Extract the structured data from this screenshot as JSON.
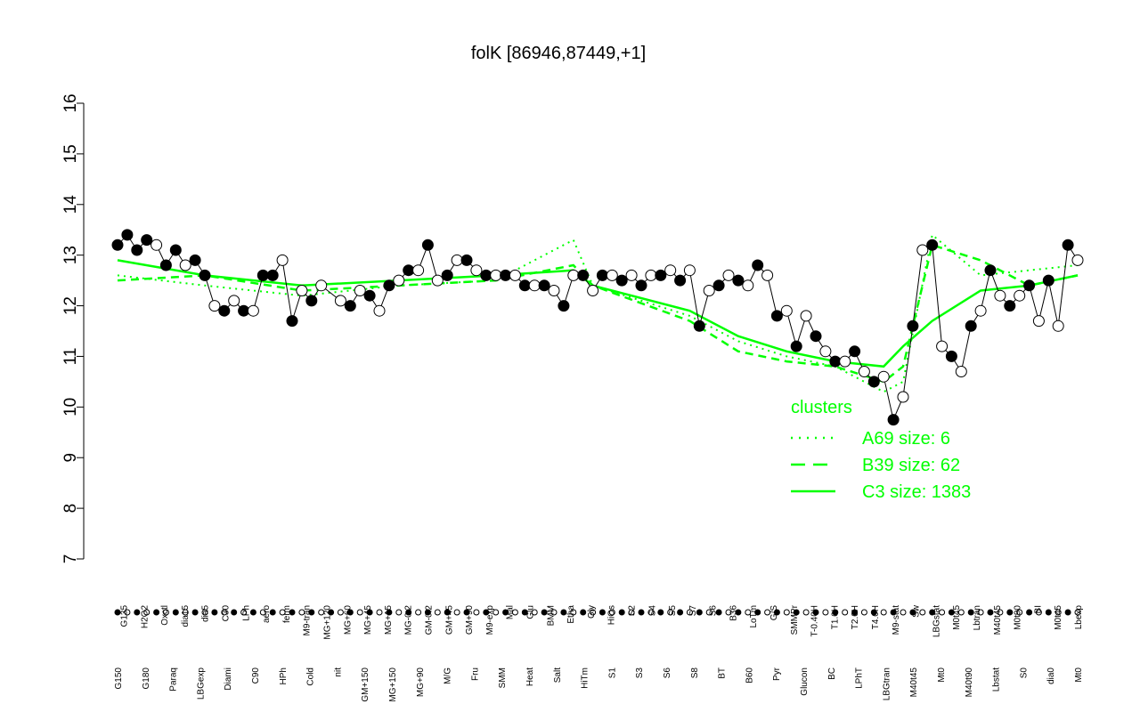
{
  "chart_data": {
    "type": "line",
    "title": "folK [86946,87449,+1]",
    "xlabel": "",
    "ylabel": "",
    "ylim": [
      7,
      16
    ],
    "yticks": [
      7,
      8,
      9,
      10,
      11,
      12,
      13,
      14,
      15,
      16
    ],
    "grid": false,
    "legend_position": "right",
    "legend_title": "clusters",
    "legend": [
      {
        "label": "A69 size: 6",
        "style": "dotted",
        "color": "#00ff00"
      },
      {
        "label": "B39 size: 62",
        "style": "dashed",
        "color": "#00ff00"
      },
      {
        "label": "C3 size: 1383",
        "style": "solid",
        "color": "#00ff00"
      }
    ],
    "x_tick_labels_top": [
      "G135",
      "H2O2",
      "Oxctl",
      "dia15",
      "dia5",
      "C30",
      "LPh",
      "aero",
      "ferm",
      "M9-tran",
      "MG+120",
      "MG+60",
      "MG+45",
      "MG+15",
      "MG-0.2",
      "GM-0.2",
      "GM+45",
      "GM+90",
      "M9-exp",
      "Mal",
      "Glu",
      "BMM",
      "Etha",
      "Gly",
      "HiOs",
      "S2",
      "S4",
      "S5",
      "S7",
      "S6",
      "B36",
      "LoTm",
      "G/S",
      "SMMPr",
      "T-0.40H",
      "T1.0H",
      "T2.0H",
      "T4.0H",
      "M9-stat",
      "Sw",
      "LBGstat",
      "M0t45",
      "Lbtran",
      "M40t45",
      "M0t90",
      "BI",
      "M0t45",
      "Lbexp"
    ],
    "x_tick_labels_bottom": [
      "G150",
      "G180",
      "Paraq",
      "LBGexp",
      "Diami",
      "C90",
      "HPh",
      "Cold",
      "nit",
      "GM+150",
      "MG+150",
      "MG+90",
      "M/G",
      "Fru",
      "SMM",
      "Heat",
      "Salt",
      "HiTm",
      "S1",
      "S3",
      "S6",
      "S8",
      "BT",
      "B60",
      "Pyr",
      "Glucon",
      "BC",
      "LPhT",
      "LBGtran",
      "M40t45",
      "Mt0",
      "M40t90",
      "Lbstat",
      "S0",
      "dia0",
      "Mt0"
    ],
    "series": [
      {
        "marker": "filled-circle",
        "x": [
          1,
          2,
          3,
          4,
          6,
          7,
          9,
          10,
          12,
          14,
          16,
          17,
          19,
          21,
          25,
          27,
          29,
          31,
          33,
          35,
          37,
          39,
          41,
          43,
          45,
          47,
          49,
          51,
          53,
          55,
          57,
          59,
          61,
          63,
          65,
          67,
          69,
          71,
          73,
          75,
          77,
          79,
          81,
          83,
          85,
          87,
          89,
          91,
          93,
          95,
          97,
          99
        ],
        "y": [
          13.2,
          13.4,
          13.1,
          13.3,
          12.8,
          13.1,
          12.9,
          12.6,
          11.9,
          11.9,
          12.6,
          12.6,
          11.7,
          12.1,
          12.0,
          12.2,
          12.4,
          12.7,
          13.2,
          12.6,
          12.9,
          12.6,
          12.6,
          12.4,
          12.4,
          12.0,
          12.6,
          12.6,
          12.5,
          12.4,
          12.6,
          12.5,
          11.6,
          12.4,
          12.5,
          12.8,
          11.8,
          11.2,
          11.4,
          10.9,
          11.1,
          10.5,
          9.75,
          11.6,
          13.2,
          11.0,
          11.6,
          12.7,
          12.0,
          12.4,
          12.5,
          13.2
        ]
      },
      {
        "marker": "open-circle",
        "x": [
          5,
          8,
          11,
          13,
          15,
          18,
          20,
          22,
          24,
          26,
          28,
          30,
          32,
          34,
          36,
          38,
          40,
          42,
          44,
          46,
          48,
          50,
          52,
          54,
          56,
          58,
          60,
          62,
          64,
          66,
          68,
          70,
          72,
          74,
          76,
          78,
          80,
          82,
          84,
          86,
          88,
          90,
          92,
          94,
          96,
          98,
          100
        ],
        "y": [
          13.2,
          12.8,
          12.0,
          12.1,
          11.9,
          12.9,
          12.3,
          12.4,
          12.1,
          12.3,
          11.9,
          12.5,
          12.7,
          12.5,
          12.9,
          12.7,
          12.6,
          12.6,
          12.4,
          12.3,
          12.6,
          12.3,
          12.6,
          12.6,
          12.6,
          12.7,
          12.7,
          12.3,
          12.6,
          12.4,
          12.6,
          11.9,
          11.8,
          11.1,
          10.9,
          10.7,
          10.6,
          10.2,
          13.1,
          11.2,
          10.7,
          11.9,
          12.2,
          12.2,
          11.7,
          11.6,
          12.9
        ]
      }
    ],
    "cluster_lines": [
      {
        "name": "A69 size: 6",
        "x": [
          1,
          10,
          20,
          30,
          40,
          48,
          50,
          60,
          65,
          70,
          75,
          80,
          82,
          85,
          90,
          95,
          100
        ],
        "y": [
          12.6,
          12.4,
          12.2,
          12.4,
          12.5,
          13.3,
          12.4,
          11.8,
          11.3,
          11.0,
          10.8,
          10.3,
          10.5,
          13.4,
          12.6,
          12.7,
          12.8
        ]
      },
      {
        "name": "B39 size: 62",
        "x": [
          1,
          10,
          20,
          30,
          40,
          48,
          50,
          60,
          65,
          70,
          75,
          80,
          82,
          85,
          90,
          95,
          100
        ],
        "y": [
          12.5,
          12.6,
          12.3,
          12.4,
          12.5,
          12.8,
          12.4,
          11.7,
          11.1,
          10.9,
          10.8,
          10.5,
          10.8,
          13.2,
          12.9,
          12.4,
          12.6
        ]
      },
      {
        "name": "C3 size: 1383",
        "x": [
          1,
          10,
          20,
          30,
          40,
          48,
          50,
          60,
          65,
          70,
          75,
          80,
          82,
          85,
          90,
          95,
          100
        ],
        "y": [
          12.9,
          12.6,
          12.4,
          12.5,
          12.6,
          12.7,
          12.4,
          11.9,
          11.4,
          11.1,
          10.9,
          10.8,
          11.2,
          11.7,
          12.3,
          12.4,
          12.6
        ]
      }
    ]
  }
}
